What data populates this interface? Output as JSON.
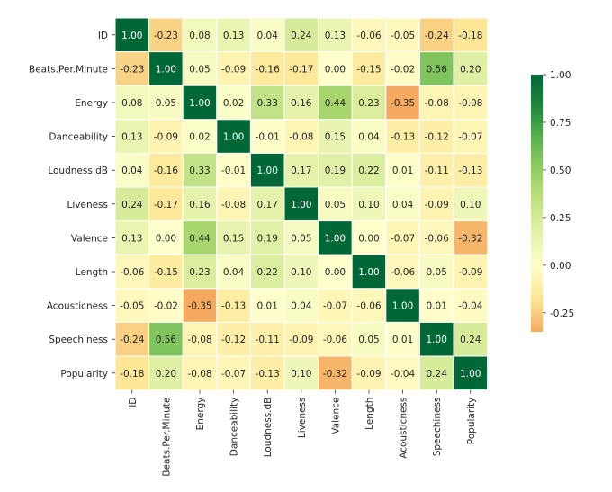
{
  "chart_data": {
    "type": "heatmap",
    "title": "",
    "xlabel": "",
    "ylabel": "",
    "labels": [
      "ID",
      "Beats.Per.Minute",
      "Energy",
      "Danceability",
      "Loudness..dB..",
      "Liveness",
      "Valence.",
      "Length.",
      "Acousticness..",
      "Speechiness.",
      "Popularity"
    ],
    "display_labels": [
      "ID",
      "Beats.Per.Minute",
      "Energy",
      "Danceability",
      "Loudness.dB",
      "Liveness",
      "Valence",
      "Length",
      "Acousticness",
      "Speechiness",
      "Popularity"
    ],
    "matrix": [
      [
        1.0,
        -0.23,
        0.08,
        0.13,
        0.04,
        0.24,
        0.13,
        -0.06,
        -0.05,
        -0.24,
        -0.18
      ],
      [
        -0.23,
        1.0,
        0.05,
        -0.09,
        -0.16,
        -0.17,
        -0.0,
        -0.15,
        -0.02,
        0.56,
        0.2
      ],
      [
        0.08,
        0.05,
        1.0,
        0.02,
        0.33,
        0.16,
        0.44,
        0.23,
        -0.35,
        -0.08,
        -0.08
      ],
      [
        0.13,
        -0.09,
        0.02,
        1.0,
        -0.01,
        -0.08,
        0.15,
        0.04,
        -0.13,
        -0.12,
        -0.07
      ],
      [
        0.04,
        -0.16,
        0.33,
        -0.01,
        1.0,
        0.17,
        0.19,
        0.22,
        0.01,
        -0.11,
        -0.13
      ],
      [
        0.24,
        -0.17,
        0.16,
        -0.08,
        0.17,
        1.0,
        0.05,
        0.1,
        0.04,
        -0.09,
        0.1
      ],
      [
        0.13,
        -0.0,
        0.44,
        0.15,
        0.19,
        0.05,
        1.0,
        0.0,
        -0.07,
        -0.06,
        -0.32
      ],
      [
        -0.06,
        -0.15,
        0.23,
        0.04,
        0.22,
        0.1,
        0.0,
        1.0,
        -0.06,
        0.05,
        -0.09
      ],
      [
        -0.05,
        -0.02,
        -0.35,
        -0.13,
        0.01,
        0.04,
        -0.07,
        -0.06,
        1.0,
        0.01,
        -0.04
      ],
      [
        -0.24,
        0.56,
        -0.08,
        -0.12,
        -0.11,
        -0.09,
        -0.06,
        0.05,
        0.01,
        1.0,
        0.24
      ],
      [
        -0.18,
        0.2,
        -0.08,
        -0.07,
        -0.13,
        0.1,
        -0.32,
        -0.09,
        -0.04,
        0.24,
        1.0
      ]
    ],
    "value_format": "0.00",
    "colormap": "RdYlGn",
    "color_range": [
      -0.35,
      1.0
    ],
    "colorbar": {
      "ticks": [
        1.0,
        0.75,
        0.5,
        0.25,
        0.0,
        -0.25
      ],
      "tick_labels": [
        "1.00",
        "0.75",
        "0.50",
        "0.25",
        "0.00",
        "-0.25"
      ]
    },
    "grid": false
  },
  "colors": {
    "background": "#ffffff",
    "cell_border": "#ffffff",
    "text_dark": "#262626",
    "text_light": "#ffffff"
  }
}
